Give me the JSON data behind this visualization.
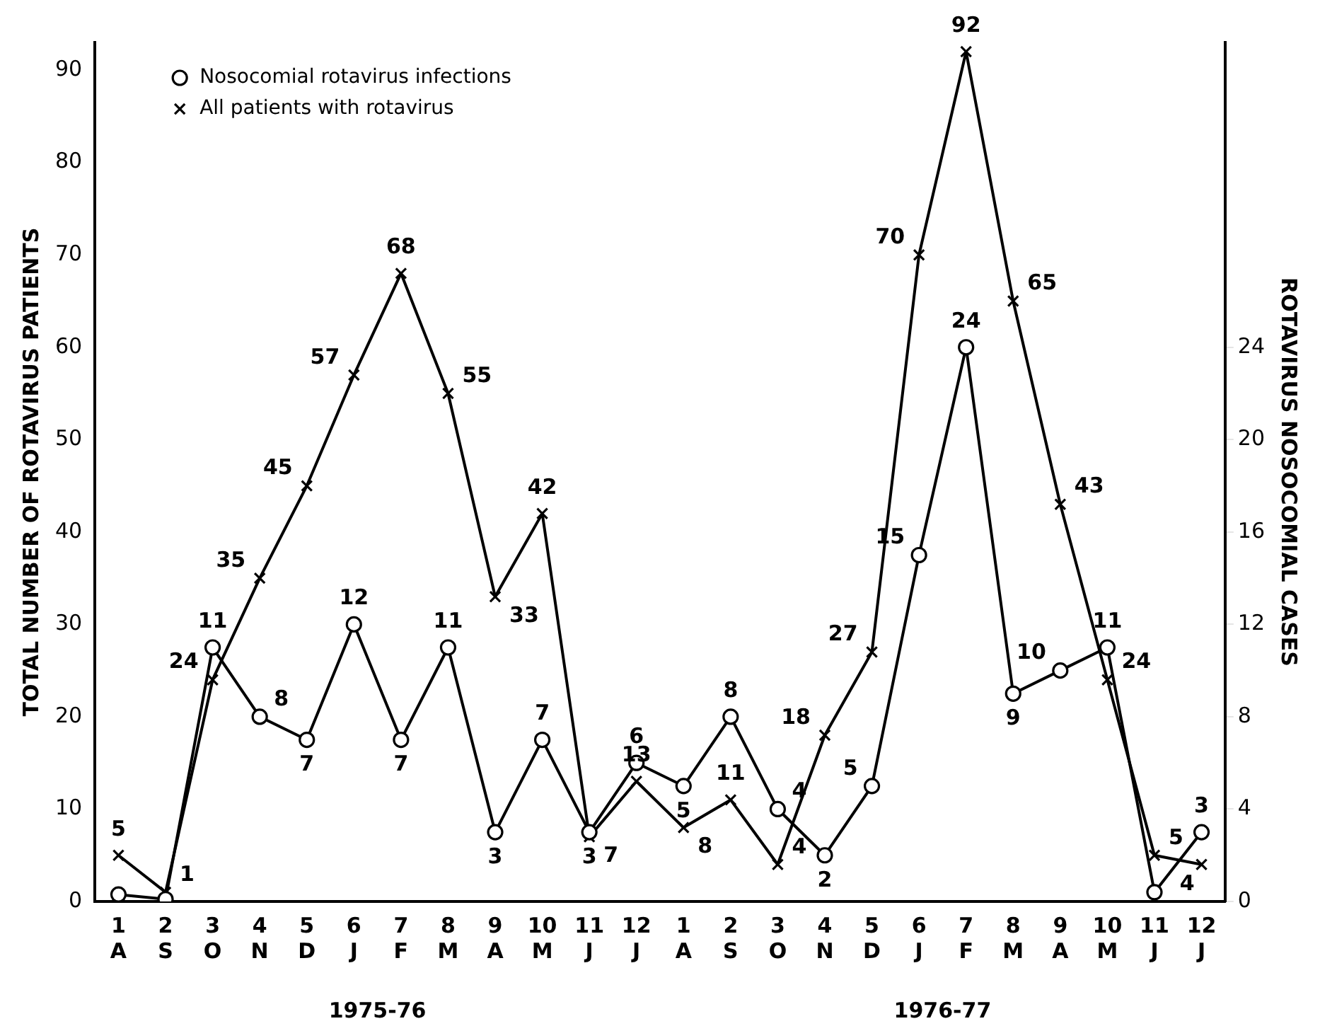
{
  "chart_data": {
    "type": "line",
    "categories": [
      "1\nA",
      "2\nS",
      "3\nO",
      "4\nN",
      "5\nD",
      "6\nJ",
      "7\nF",
      "8\nM",
      "9\nA",
      "10\nM",
      "11\nJ",
      "12\nJ",
      "1\nA",
      "2\nS",
      "3\nO",
      "4\nN",
      "5\nD",
      "6\nJ",
      "7\nF",
      "8\nM",
      "9\nA",
      "10\nM",
      "11\nJ",
      "12\nJ"
    ],
    "series": [
      {
        "name": "Nosocomial rotavirus infections",
        "color": "#000000",
        "marker": "circle",
        "axis": "y2",
        "values": [
          0.3,
          0.1,
          11,
          8,
          7,
          12,
          7,
          11,
          3,
          7,
          3,
          6,
          5,
          8,
          4,
          2,
          5,
          15,
          24,
          9,
          10,
          11,
          0.4,
          3
        ],
        "value_labels": [
          null,
          null,
          "11",
          "8",
          "7",
          "12",
          "7",
          "11",
          "3",
          "7",
          "3",
          "6",
          "5",
          "8",
          "4",
          "2",
          "5",
          "15",
          "24",
          "9",
          "10",
          "11",
          null,
          "3"
        ]
      },
      {
        "name": "All patients with rotavirus",
        "color": "#000000",
        "marker": "cross",
        "values": [
          5,
          1,
          24,
          35,
          45,
          57,
          68,
          55,
          33,
          42,
          7,
          13,
          8,
          11,
          4,
          18,
          27,
          70,
          92,
          65,
          43,
          24,
          5,
          4
        ],
        "value_labels": [
          "5",
          "1",
          "24",
          "35",
          "45",
          "57",
          "68",
          "55",
          "33",
          "42",
          "7",
          "13",
          "8",
          "11",
          "4",
          "18",
          "27",
          "70",
          "92",
          "65",
          "43",
          "24",
          "5",
          "4"
        ]
      }
    ],
    "ylabel": "TOTAL NUMBER OF ROTAVIRUS PATIENTS",
    "y2label": "ROTAVIRUS NOSOCOMIAL CASES",
    "ylim": [
      0,
      93
    ],
    "yticks": [
      0,
      10,
      20,
      30,
      40,
      50,
      60,
      70,
      80,
      90
    ],
    "y2lim": [
      0,
      37.2
    ],
    "y2ticks": [
      0,
      4,
      8,
      12,
      16,
      20,
      24
    ],
    "annotations": [
      "1975-76",
      "1976-77"
    ],
    "legend": "top left",
    "grid": false,
    "line_style": "solid"
  }
}
